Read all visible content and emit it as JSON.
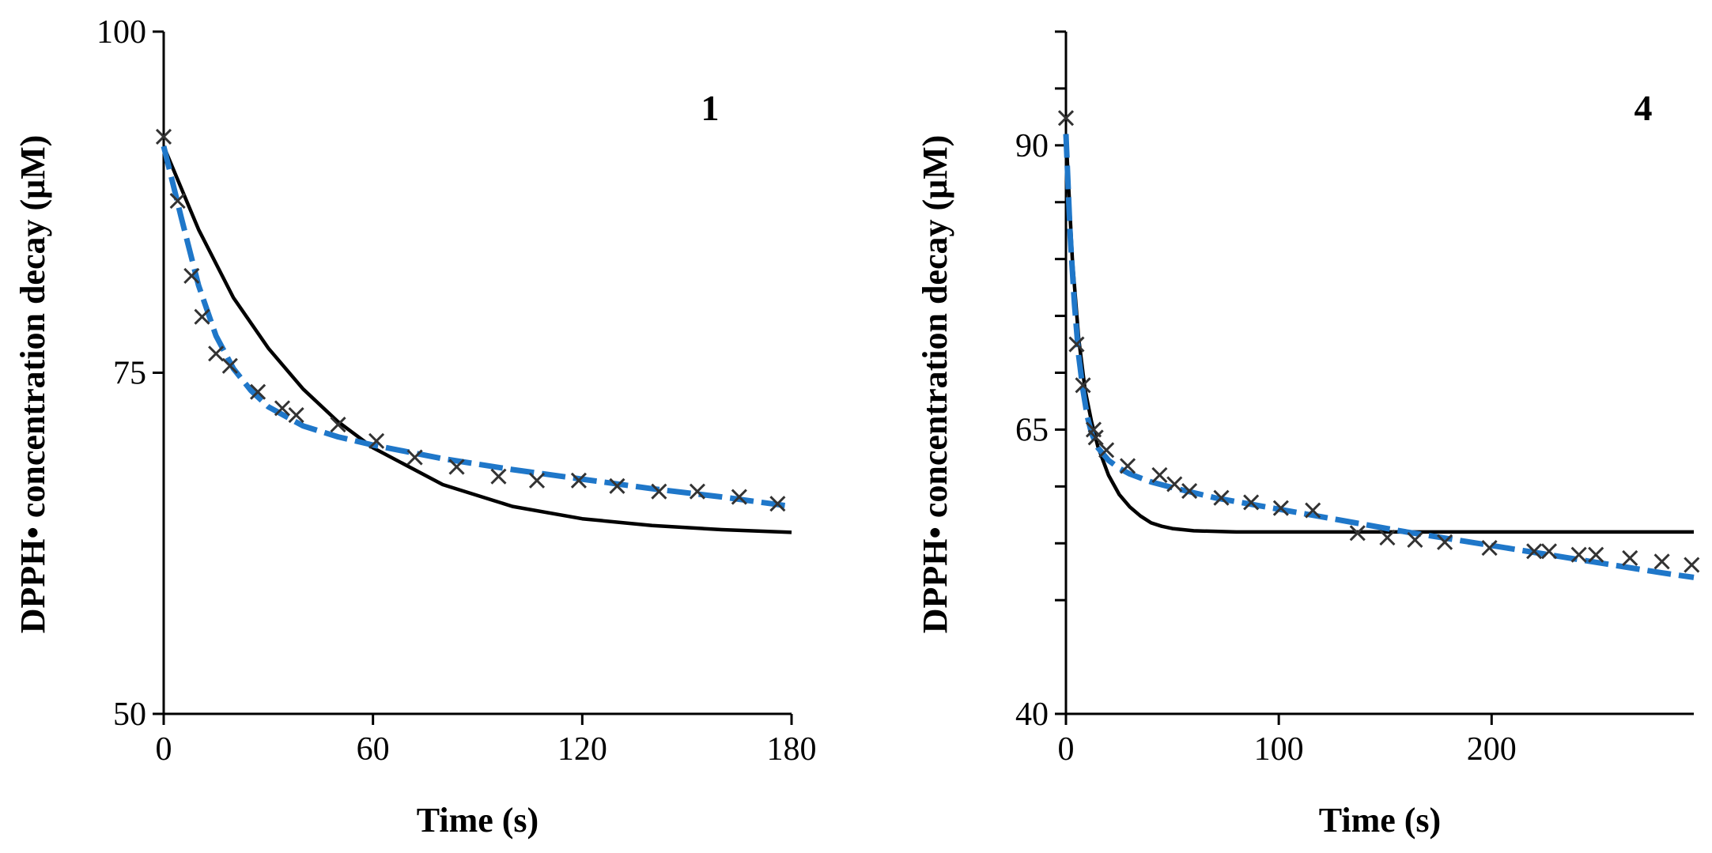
{
  "colors": {
    "fit_black": "#000000",
    "fit_blue": "#1f77c9",
    "marker": "#333333"
  },
  "chart_data": [
    {
      "type": "scatter",
      "panel_label": "1",
      "xlabel": "Time (s)",
      "ylabel": "DPPH• concentration decay (μM)",
      "xlim": [
        0,
        180
      ],
      "ylim": [
        50,
        100
      ],
      "xticks": [
        0,
        60,
        120,
        180
      ],
      "yticks": [
        50,
        75,
        100
      ],
      "yminor": [],
      "series": [
        {
          "name": "experimental",
          "kind": "markers",
          "marker": "x",
          "x": [
            0,
            4,
            8,
            11,
            15,
            19,
            27,
            34,
            38,
            50,
            61,
            72,
            84,
            96,
            107,
            119,
            130,
            142,
            153,
            165,
            176
          ],
          "y": [
            92.3,
            87.6,
            82.1,
            79.1,
            76.4,
            75.5,
            73.6,
            72.4,
            71.9,
            71.2,
            70.0,
            68.8,
            68.1,
            67.4,
            67.1,
            67.1,
            66.7,
            66.3,
            66.3,
            65.9,
            65.4
          ]
        },
        {
          "name": "fit-blue-dashed",
          "kind": "line",
          "style": "dashed",
          "color": "#1f77c9",
          "x": [
            0,
            5,
            10,
            15,
            20,
            25,
            30,
            40,
            50,
            60,
            80,
            100,
            120,
            140,
            160,
            180
          ],
          "y": [
            91.6,
            86.4,
            81.4,
            77.7,
            75.3,
            73.7,
            72.5,
            71.1,
            70.3,
            69.7,
            68.7,
            67.9,
            67.2,
            66.5,
            65.9,
            65.2
          ]
        },
        {
          "name": "fit-black-solid",
          "kind": "line",
          "style": "solid",
          "color": "#000000",
          "x": [
            0,
            10,
            20,
            30,
            40,
            50,
            60,
            80,
            100,
            120,
            140,
            160,
            180
          ],
          "y": [
            91.6,
            85.5,
            80.5,
            76.8,
            73.8,
            71.4,
            69.5,
            66.8,
            65.2,
            64.3,
            63.8,
            63.5,
            63.3
          ]
        }
      ]
    },
    {
      "type": "scatter",
      "panel_label": "4",
      "xlabel": "Time (s)",
      "ylabel": "DPPH• concentration decay (μM)",
      "xlim": [
        0,
        295
      ],
      "ylim": [
        40,
        100
      ],
      "xticks": [
        0,
        100,
        200
      ],
      "yticks": [
        40,
        65,
        90
      ],
      "yminor": [
        50,
        55,
        60,
        70,
        75,
        80,
        85,
        95,
        100
      ],
      "series": [
        {
          "name": "experimental",
          "kind": "markers",
          "marker": "x",
          "x": [
            0,
            5,
            8,
            13,
            14,
            19,
            29,
            44,
            51,
            58,
            73,
            87,
            101,
            116,
            137,
            151,
            164,
            178,
            199,
            220,
            227,
            241,
            249,
            265,
            280,
            294
          ],
          "y": [
            92.4,
            72.5,
            68.9,
            65.0,
            64.3,
            63.2,
            61.8,
            61.0,
            60.2,
            59.6,
            59.0,
            58.6,
            58.1,
            57.9,
            55.9,
            55.5,
            55.3,
            55.1,
            54.6,
            54.3,
            54.3,
            54.0,
            54.0,
            53.7,
            53.4,
            53.1
          ]
        },
        {
          "name": "fit-blue-dashed",
          "kind": "line",
          "style": "dashed",
          "color": "#1f77c9",
          "x": [
            0,
            2,
            4,
            6,
            8,
            10,
            12,
            15,
            20,
            25,
            30,
            40,
            50,
            70,
            100,
            130,
            160,
            200,
            240,
            280,
            295
          ],
          "y": [
            91.0,
            82.0,
            76.0,
            71.5,
            68.5,
            66.2,
            64.7,
            63.4,
            62.3,
            61.6,
            61.1,
            60.4,
            59.9,
            59.0,
            58.0,
            57.0,
            56.0,
            54.8,
            53.6,
            52.4,
            52.0
          ]
        },
        {
          "name": "fit-black-solid",
          "kind": "line",
          "style": "solid",
          "color": "#000000",
          "x": [
            0,
            3,
            6,
            9,
            12,
            15,
            20,
            25,
            30,
            35,
            40,
            45,
            50,
            60,
            80,
            100,
            150,
            200,
            295
          ],
          "y": [
            91.0,
            80.0,
            73.0,
            68.5,
            65.7,
            63.5,
            61.0,
            59.3,
            58.2,
            57.4,
            56.8,
            56.5,
            56.3,
            56.1,
            56.0,
            56.0,
            56.0,
            56.0,
            56.0
          ]
        }
      ]
    }
  ]
}
